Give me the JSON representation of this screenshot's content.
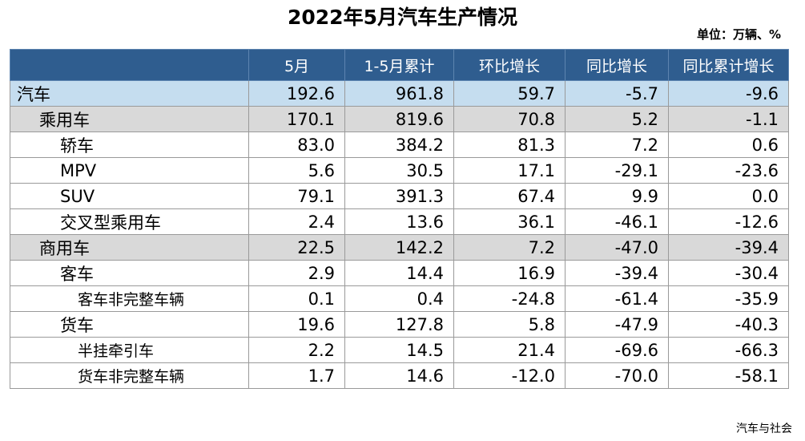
{
  "title": "2022年5月汽车生产情况",
  "unit": "单位：万辆、%",
  "headers": [
    "",
    "5月",
    "1-5月累计",
    "环比增长",
    "同比增长",
    "同比累计增长"
  ],
  "rows": [
    {
      "label": "汽车",
      "level": 0,
      "values": [
        "192.6",
        "961.8",
        "59.7",
        "-5.7",
        "-9.6"
      ]
    },
    {
      "label": "乘用车",
      "level": 1,
      "values": [
        "170.1",
        "819.6",
        "70.8",
        "5.2",
        "-1.1"
      ]
    },
    {
      "label": "轿车",
      "level": 2,
      "values": [
        "83.0",
        "384.2",
        "81.3",
        "7.2",
        "0.6"
      ]
    },
    {
      "label": "MPV",
      "level": 2,
      "values": [
        "5.6",
        "30.5",
        "17.1",
        "-29.1",
        "-23.6"
      ]
    },
    {
      "label": "SUV",
      "level": 2,
      "values": [
        "79.1",
        "391.3",
        "67.4",
        "9.9",
        "0.0"
      ]
    },
    {
      "label": "交叉型乘用车",
      "level": 2,
      "values": [
        "2.4",
        "13.6",
        "36.1",
        "-46.1",
        "-12.6"
      ]
    },
    {
      "label": "商用车",
      "level": 1,
      "values": [
        "22.5",
        "142.2",
        "7.2",
        "-47.0",
        "-39.4"
      ]
    },
    {
      "label": "客车",
      "level": 2,
      "values": [
        "2.9",
        "14.4",
        "16.9",
        "-39.4",
        "-30.4"
      ]
    },
    {
      "label": "客车非完整车辆",
      "level": 3,
      "values": [
        "0.1",
        "0.4",
        "-24.8",
        "-61.4",
        "-35.9"
      ]
    },
    {
      "label": "货车",
      "level": 2,
      "values": [
        "19.6",
        "127.8",
        "5.8",
        "-47.9",
        "-40.3"
      ]
    },
    {
      "label": "半挂牵引车",
      "level": 3,
      "values": [
        "2.2",
        "14.5",
        "21.4",
        "-69.6",
        "-66.3"
      ]
    },
    {
      "label": "货车非完整车辆",
      "level": 3,
      "values": [
        "1.7",
        "14.6",
        "-12.0",
        "-70.0",
        "-58.1"
      ]
    }
  ],
  "footer": "汽车与社会"
}
